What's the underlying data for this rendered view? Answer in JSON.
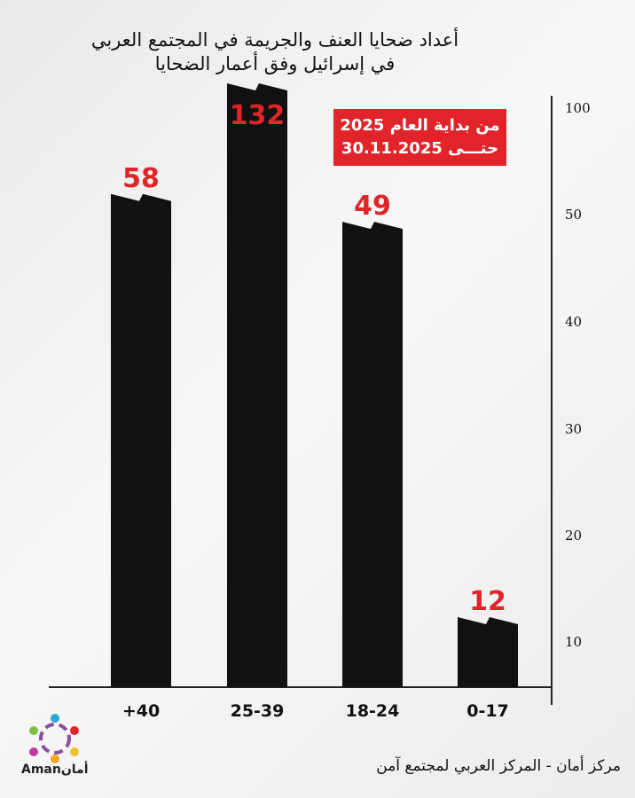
{
  "chart_data": {
    "type": "bar",
    "title": [
      "أعداد ضحايا العنف والجريمة في المجتمع العربي",
      "في إسرائيل وفق أعمار الضحايا"
    ],
    "categories": [
      "+40",
      "25-39",
      "18-24",
      "0-17"
    ],
    "values": [
      58,
      132,
      49,
      12
    ],
    "data_labels": [
      "58",
      "132",
      "49",
      "12"
    ],
    "y_ticks": [
      "100",
      "50",
      "40",
      "30",
      "20",
      "10"
    ],
    "y_axis_position": "right",
    "grid": false,
    "bar_color": "#111111",
    "label_color": "#e0242a"
  },
  "badge": {
    "line1": "من بداية العام 2025",
    "line2": "حتـــى 30.11.2025",
    "color": "#e0242a"
  },
  "footer": "مركز أمان  - المركز العربي لمجتمع آمن",
  "logo": {
    "text": "Amanأمان"
  }
}
